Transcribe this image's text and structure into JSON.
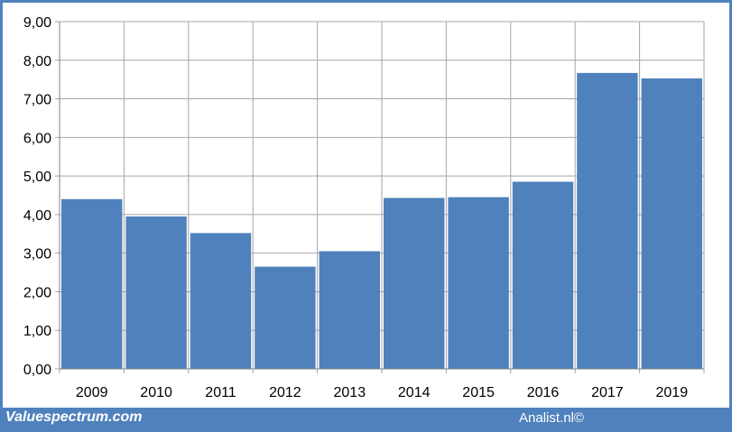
{
  "chart_data": {
    "type": "bar",
    "categories": [
      "2009",
      "2010",
      "2011",
      "2012",
      "2013",
      "2014",
      "2015",
      "2016",
      "2017",
      "2019"
    ],
    "values": [
      4.4,
      3.95,
      3.52,
      2.65,
      3.05,
      4.43,
      4.45,
      4.85,
      7.67,
      7.53
    ],
    "ylim": [
      0,
      9
    ],
    "yticks": [
      "0,00",
      "1,00",
      "2,00",
      "3,00",
      "4,00",
      "5,00",
      "6,00",
      "7,00",
      "8,00",
      "9,00"
    ],
    "bar_color": "#4f81bd",
    "grid": true,
    "legend": "none"
  },
  "footer": {
    "source_left": "Valuespectrum.com",
    "source_right": "Analist.nl©"
  },
  "colors": {
    "frame": "#4f81bd",
    "grid": "#a6a6a6",
    "background": "#ffffff"
  }
}
